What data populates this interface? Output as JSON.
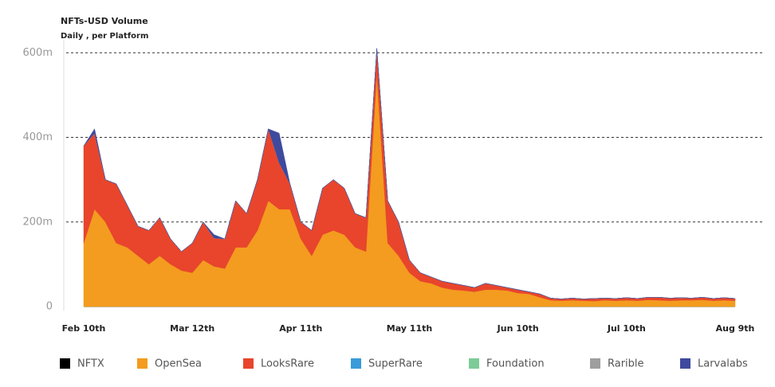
{
  "chart_data": {
    "type": "stacked-area",
    "title": "NFTs-USD Volume",
    "subtitle": "Daily , per Platform",
    "categories": [
      "Feb 10th",
      null,
      null,
      null,
      null,
      null,
      null,
      null,
      null,
      null,
      "Mar 12th",
      null,
      null,
      null,
      null,
      null,
      null,
      null,
      null,
      null,
      "Apr 11th",
      null,
      null,
      null,
      null,
      null,
      null,
      null,
      null,
      null,
      "May 11th",
      null,
      null,
      null,
      null,
      null,
      null,
      null,
      null,
      null,
      "Jun 10th",
      null,
      null,
      null,
      null,
      null,
      null,
      null,
      null,
      null,
      "Jul 10th",
      null,
      null,
      null,
      null,
      null,
      null,
      null,
      null,
      null,
      "Aug 9th"
    ],
    "ylim": [
      0,
      640
    ],
    "yticks": [
      0,
      {
        "value": 200,
        "label": "200m"
      },
      {
        "value": 400,
        "label": "400m"
      },
      {
        "value": 600,
        "label": "600m"
      }
    ],
    "grid": true,
    "series": [
      {
        "name": "NFTX",
        "color": "#000000",
        "values": [
          0,
          0,
          0,
          0,
          0,
          0,
          0,
          0,
          0,
          0,
          0,
          0,
          0,
          0,
          0,
          0,
          0,
          0,
          0,
          0,
          0,
          0,
          0,
          0,
          0,
          0,
          0,
          0,
          0,
          0,
          0,
          0,
          0,
          0,
          0,
          0,
          0,
          0,
          0,
          0,
          0,
          0,
          0,
          0,
          0,
          0,
          0,
          0,
          0,
          0,
          0,
          0,
          0,
          0,
          0,
          0,
          0,
          0,
          0,
          0,
          0
        ]
      },
      {
        "name": "OpenSea",
        "color": "#f39c1f",
        "values": [
          150,
          230,
          200,
          150,
          140,
          120,
          100,
          120,
          100,
          85,
          80,
          110,
          95,
          90,
          140,
          140,
          180,
          250,
          230,
          230,
          160,
          120,
          170,
          180,
          170,
          140,
          130,
          550,
          150,
          120,
          80,
          60,
          55,
          45,
          40,
          38,
          35,
          40,
          40,
          38,
          32,
          30,
          22,
          15,
          14,
          15,
          14,
          13,
          15,
          14,
          15,
          14,
          16,
          15,
          14,
          15,
          15,
          16,
          14,
          15,
          14
        ]
      },
      {
        "name": "LooksRare",
        "color": "#e8452c",
        "values": [
          230,
          180,
          100,
          140,
          100,
          70,
          80,
          90,
          60,
          45,
          70,
          90,
          67,
          70,
          110,
          80,
          120,
          170,
          110,
          60,
          40,
          60,
          110,
          120,
          110,
          80,
          80,
          60,
          100,
          80,
          30,
          20,
          15,
          15,
          15,
          12,
          10,
          15,
          10,
          7,
          8,
          5,
          8,
          5,
          4,
          5,
          4,
          6,
          5,
          5,
          6,
          5,
          6,
          7,
          6,
          6,
          5,
          6,
          5,
          6,
          5
        ]
      },
      {
        "name": "SuperRare",
        "color": "#3a9bd9",
        "values": [
          0,
          0,
          0,
          0,
          0,
          0,
          0,
          0,
          0,
          0,
          0,
          0,
          0,
          0,
          0,
          0,
          0,
          0,
          0,
          0,
          0,
          0,
          0,
          0,
          0,
          0,
          0,
          0,
          0,
          0,
          0,
          0,
          0,
          0,
          0,
          0,
          0,
          0,
          0,
          0,
          0,
          0,
          0,
          0,
          0,
          0,
          0,
          0,
          0,
          0,
          0,
          0,
          0,
          0,
          0,
          0,
          0,
          0,
          0,
          0,
          0
        ]
      },
      {
        "name": "Foundation",
        "color": "#7dcb98",
        "values": [
          0,
          0,
          0,
          0,
          0,
          0,
          0,
          0,
          0,
          0,
          0,
          0,
          0,
          0,
          0,
          0,
          0,
          0,
          0,
          0,
          0,
          0,
          0,
          0,
          0,
          0,
          0,
          0,
          0,
          0,
          0,
          0,
          0,
          0,
          0,
          0,
          0,
          0,
          0,
          0,
          0,
          0,
          0,
          0,
          0,
          0,
          0,
          0,
          0,
          0,
          0,
          0,
          0,
          0,
          0,
          0,
          0,
          0,
          0,
          0,
          0
        ]
      },
      {
        "name": "Rarible",
        "color": "#9e9e9e",
        "values": [
          0,
          0,
          0,
          0,
          0,
          0,
          0,
          0,
          0,
          0,
          0,
          0,
          0,
          0,
          0,
          0,
          0,
          0,
          0,
          0,
          0,
          0,
          0,
          0,
          0,
          0,
          0,
          0,
          0,
          0,
          0,
          0,
          0,
          0,
          0,
          0,
          0,
          0,
          0,
          0,
          0,
          0,
          0,
          0,
          0,
          0,
          0,
          0,
          0,
          0,
          0,
          0,
          0,
          0,
          0,
          0,
          0,
          0,
          0,
          0,
          0
        ]
      },
      {
        "name": "Larvalabs",
        "color": "#3e4a9e",
        "values": [
          0,
          10,
          0,
          0,
          0,
          0,
          0,
          0,
          0,
          0,
          0,
          0,
          8,
          0,
          0,
          0,
          0,
          0,
          70,
          0,
          0,
          0,
          0,
          0,
          0,
          0,
          0,
          0,
          0,
          0,
          0,
          0,
          0,
          0,
          0,
          0,
          0,
          0,
          0,
          0,
          0,
          0,
          0,
          0,
          0,
          0,
          0,
          0,
          0,
          0,
          0,
          0,
          0,
          0,
          0,
          0,
          0,
          0,
          0,
          0,
          0
        ]
      }
    ]
  }
}
